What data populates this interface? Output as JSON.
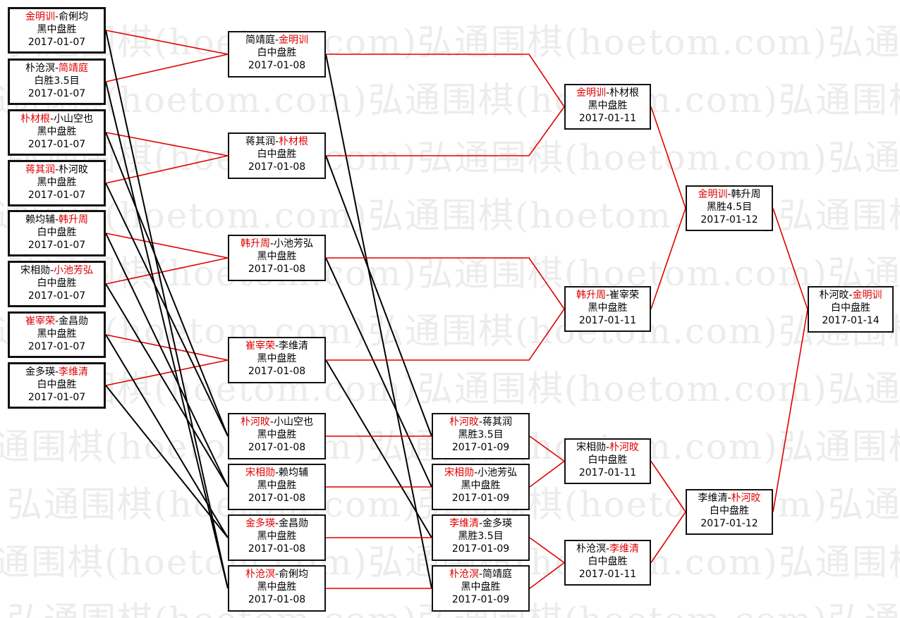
{
  "watermark": "弘通围棋(hoetom.com)",
  "colors": {
    "winner": "#e00000",
    "winner_line": "#e00000",
    "loser_line": "#000000",
    "border": "#111111"
  },
  "games": [
    {
      "id": "r1a",
      "p1": "金明训",
      "p2": "俞俐均",
      "winner": 1,
      "result": "黑中盘胜",
      "date": "2017-01-07"
    },
    {
      "id": "r1b",
      "p1": "朴沧溟",
      "p2": "简靖庭",
      "winner": 2,
      "result": "白胜3.5目",
      "date": "2017-01-07"
    },
    {
      "id": "r1c",
      "p1": "朴材根",
      "p2": "小山空也",
      "winner": 1,
      "result": "黑中盘胜",
      "date": "2017-01-07"
    },
    {
      "id": "r1d",
      "p1": "蒋其润",
      "p2": "朴河旼",
      "winner": 1,
      "result": "黑中盘胜",
      "date": "2017-01-07"
    },
    {
      "id": "r1e",
      "p1": "赖均辅",
      "p2": "韩升周",
      "winner": 2,
      "result": "白中盘胜",
      "date": "2017-01-07"
    },
    {
      "id": "r1f",
      "p1": "宋相勋",
      "p2": "小池芳弘",
      "winner": 2,
      "result": "白中盘胜",
      "date": "2017-01-07"
    },
    {
      "id": "r1g",
      "p1": "崔宰荣",
      "p2": "金昌勋",
      "winner": 1,
      "result": "黑中盘胜",
      "date": "2017-01-07"
    },
    {
      "id": "r1h",
      "p1": "金多瑛",
      "p2": "李维清",
      "winner": 2,
      "result": "白中盘胜",
      "date": "2017-01-07"
    },
    {
      "id": "r2a",
      "p1": "简靖庭",
      "p2": "金明训",
      "winner": 2,
      "result": "白中盘胜",
      "date": "2017-01-08"
    },
    {
      "id": "r2b",
      "p1": "蒋其润",
      "p2": "朴材根",
      "winner": 2,
      "result": "白中盘胜",
      "date": "2017-01-08"
    },
    {
      "id": "r2c",
      "p1": "韩升周",
      "p2": "小池芳弘",
      "winner": 1,
      "result": "黑中盘胜",
      "date": "2017-01-08"
    },
    {
      "id": "r2d",
      "p1": "崔宰荣",
      "p2": "李维清",
      "winner": 1,
      "result": "黑中盘胜",
      "date": "2017-01-08"
    },
    {
      "id": "l1a",
      "p1": "朴河旼",
      "p2": "小山空也",
      "winner": 1,
      "result": "黑中盘胜",
      "date": "2017-01-08"
    },
    {
      "id": "l1b",
      "p1": "宋相勋",
      "p2": "赖均辅",
      "winner": 1,
      "result": "黑中盘胜",
      "date": "2017-01-08"
    },
    {
      "id": "l1c",
      "p1": "金多瑛",
      "p2": "金昌勋",
      "winner": 1,
      "result": "黑中盘胜",
      "date": "2017-01-08"
    },
    {
      "id": "l1d",
      "p1": "朴沧溟",
      "p2": "俞俐均",
      "winner": 1,
      "result": "黑中盘胜",
      "date": "2017-01-08"
    },
    {
      "id": "l2a",
      "p1": "朴河旼",
      "p2": "蒋其润",
      "winner": 1,
      "result": "黑胜3.5目",
      "date": "2017-01-09"
    },
    {
      "id": "l2b",
      "p1": "宋相勋",
      "p2": "小池芳弘",
      "winner": 1,
      "result": "黑中盘胜",
      "date": "2017-01-09"
    },
    {
      "id": "l2c",
      "p1": "李维清",
      "p2": "金多瑛",
      "winner": 1,
      "result": "黑胜3.5目",
      "date": "2017-01-09"
    },
    {
      "id": "l2d",
      "p1": "朴沧溟",
      "p2": "简靖庭",
      "winner": 1,
      "result": "黑中盘胜",
      "date": "2017-01-09"
    },
    {
      "id": "r3a",
      "p1": "金明训",
      "p2": "朴材根",
      "winner": 1,
      "result": "黑中盘胜",
      "date": "2017-01-11"
    },
    {
      "id": "r3b",
      "p1": "韩升周",
      "p2": "崔宰荣",
      "winner": 1,
      "result": "黑中盘胜",
      "date": "2017-01-11"
    },
    {
      "id": "l3a",
      "p1": "宋相勋",
      "p2": "朴河旼",
      "winner": 2,
      "result": "白中盘胜",
      "date": "2017-01-11"
    },
    {
      "id": "l3b",
      "p1": "朴沧溟",
      "p2": "李维清",
      "winner": 2,
      "result": "白中盘胜",
      "date": "2017-01-11"
    },
    {
      "id": "wf",
      "p1": "金明训",
      "p2": "韩升周",
      "winner": 1,
      "result": "黑胜4.5目",
      "date": "2017-01-12"
    },
    {
      "id": "lf",
      "p1": "李维清",
      "p2": "朴河旼",
      "winner": 2,
      "result": "白中盘胜",
      "date": "2017-01-12"
    },
    {
      "id": "final",
      "p1": "朴河旼",
      "p2": "金明训",
      "winner": 2,
      "result": "白中盘胜",
      "date": "2017-01-14"
    }
  ],
  "links": [
    [
      "r1a",
      "r2a",
      "win"
    ],
    [
      "r1b",
      "r2a",
      "win"
    ],
    [
      "r1c",
      "r2b",
      "win"
    ],
    [
      "r1d",
      "r2b",
      "win"
    ],
    [
      "r1e",
      "r2c",
      "win"
    ],
    [
      "r1f",
      "r2c",
      "win"
    ],
    [
      "r1g",
      "r2d",
      "win"
    ],
    [
      "r1h",
      "r2d",
      "win"
    ],
    [
      "r1a",
      "l1d",
      "lose"
    ],
    [
      "r1b",
      "l1d",
      "lose"
    ],
    [
      "r1c",
      "l1a",
      "lose"
    ],
    [
      "r1d",
      "l1a",
      "lose"
    ],
    [
      "r1e",
      "l1b",
      "lose"
    ],
    [
      "r1f",
      "l1b",
      "lose"
    ],
    [
      "r1g",
      "l1c",
      "lose"
    ],
    [
      "r1h",
      "l1c",
      "lose"
    ],
    [
      "r2a",
      "l2d",
      "lose"
    ],
    [
      "r2b",
      "l2a",
      "lose"
    ],
    [
      "r2c",
      "l2b",
      "lose"
    ],
    [
      "r2d",
      "l2c",
      "lose"
    ],
    [
      "l1a",
      "l2a",
      "win"
    ],
    [
      "l1b",
      "l2b",
      "win"
    ],
    [
      "l1c",
      "l2c",
      "win"
    ],
    [
      "l1d",
      "l2d",
      "win"
    ],
    [
      "r2a",
      "r3a",
      "win"
    ],
    [
      "r2b",
      "r3a",
      "win"
    ],
    [
      "r2c",
      "r3b",
      "win"
    ],
    [
      "r2d",
      "r3b",
      "win"
    ],
    [
      "l2a",
      "l3a",
      "win"
    ],
    [
      "l2b",
      "l3a",
      "win"
    ],
    [
      "l2c",
      "l3b",
      "win"
    ],
    [
      "l2d",
      "l3b",
      "win"
    ],
    [
      "r3a",
      "wf",
      "win"
    ],
    [
      "r3b",
      "wf",
      "win"
    ],
    [
      "l3a",
      "lf",
      "win"
    ],
    [
      "l3b",
      "lf",
      "win"
    ],
    [
      "wf",
      "final",
      "win"
    ],
    [
      "lf",
      "final",
      "win"
    ]
  ]
}
